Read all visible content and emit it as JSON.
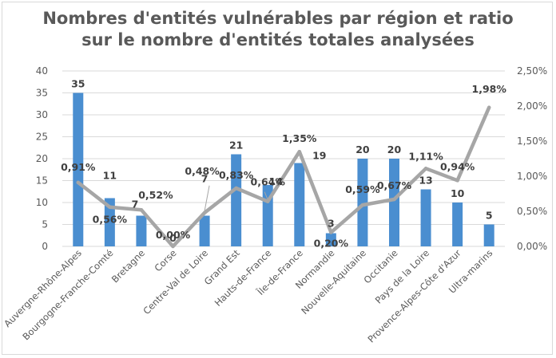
{
  "chart_data": {
    "type": "bar",
    "title_line1": "Nombres d'entités vulnérables par région et ratio",
    "title_line2": "sur le nombre d'entités totales analysées",
    "categories": [
      "Auvergne-Rhône-Alpes",
      "Bourgogne-Franche-Comté",
      "Bretagne",
      "Corse",
      "Centre-Val de Loire",
      "Grand Est",
      "Hauts-de-France",
      "Île-de-France",
      "Normandie",
      "Nouvelle-Aquitaine",
      "Occitanie",
      "Pays de la Loire",
      "Provence-Alpes-Côte d'Azur",
      "Ultra-marins"
    ],
    "series": [
      {
        "type": "bar",
        "axis": "left",
        "values": [
          35,
          11,
          7,
          0,
          7,
          21,
          14,
          19,
          3,
          20,
          20,
          13,
          10,
          5
        ],
        "labels": [
          "35",
          "11",
          "7",
          "0",
          "7",
          "21",
          "14",
          "19",
          "3",
          "20",
          "20",
          "13",
          "10",
          "5"
        ],
        "color": "#4a8ed0"
      },
      {
        "type": "line",
        "axis": "right",
        "values": [
          0.91,
          0.56,
          0.52,
          0.0,
          0.48,
          0.83,
          0.64,
          1.35,
          0.2,
          0.59,
          0.67,
          1.11,
          0.94,
          1.98
        ],
        "labels": [
          "0,91%",
          "0,56%",
          "0,52%",
          "0,00%",
          "0,48%",
          "0,83%",
          "0,64%",
          "1,35%",
          "0,20%",
          "0,59%",
          "0,67%",
          "1,11%",
          "0,94%",
          "1,98%"
        ],
        "color": "#a6a6a6"
      }
    ],
    "y_left": {
      "min": 0,
      "max": 40,
      "ticks": [
        "0",
        "5",
        "10",
        "15",
        "20",
        "25",
        "30",
        "35",
        "40"
      ]
    },
    "y_right": {
      "min": 0,
      "max": 2.5,
      "ticks": [
        "0,00%",
        "0,50%",
        "1,00%",
        "1,50%",
        "2,00%",
        "2,50%"
      ]
    },
    "grid": true,
    "legend": "none"
  }
}
